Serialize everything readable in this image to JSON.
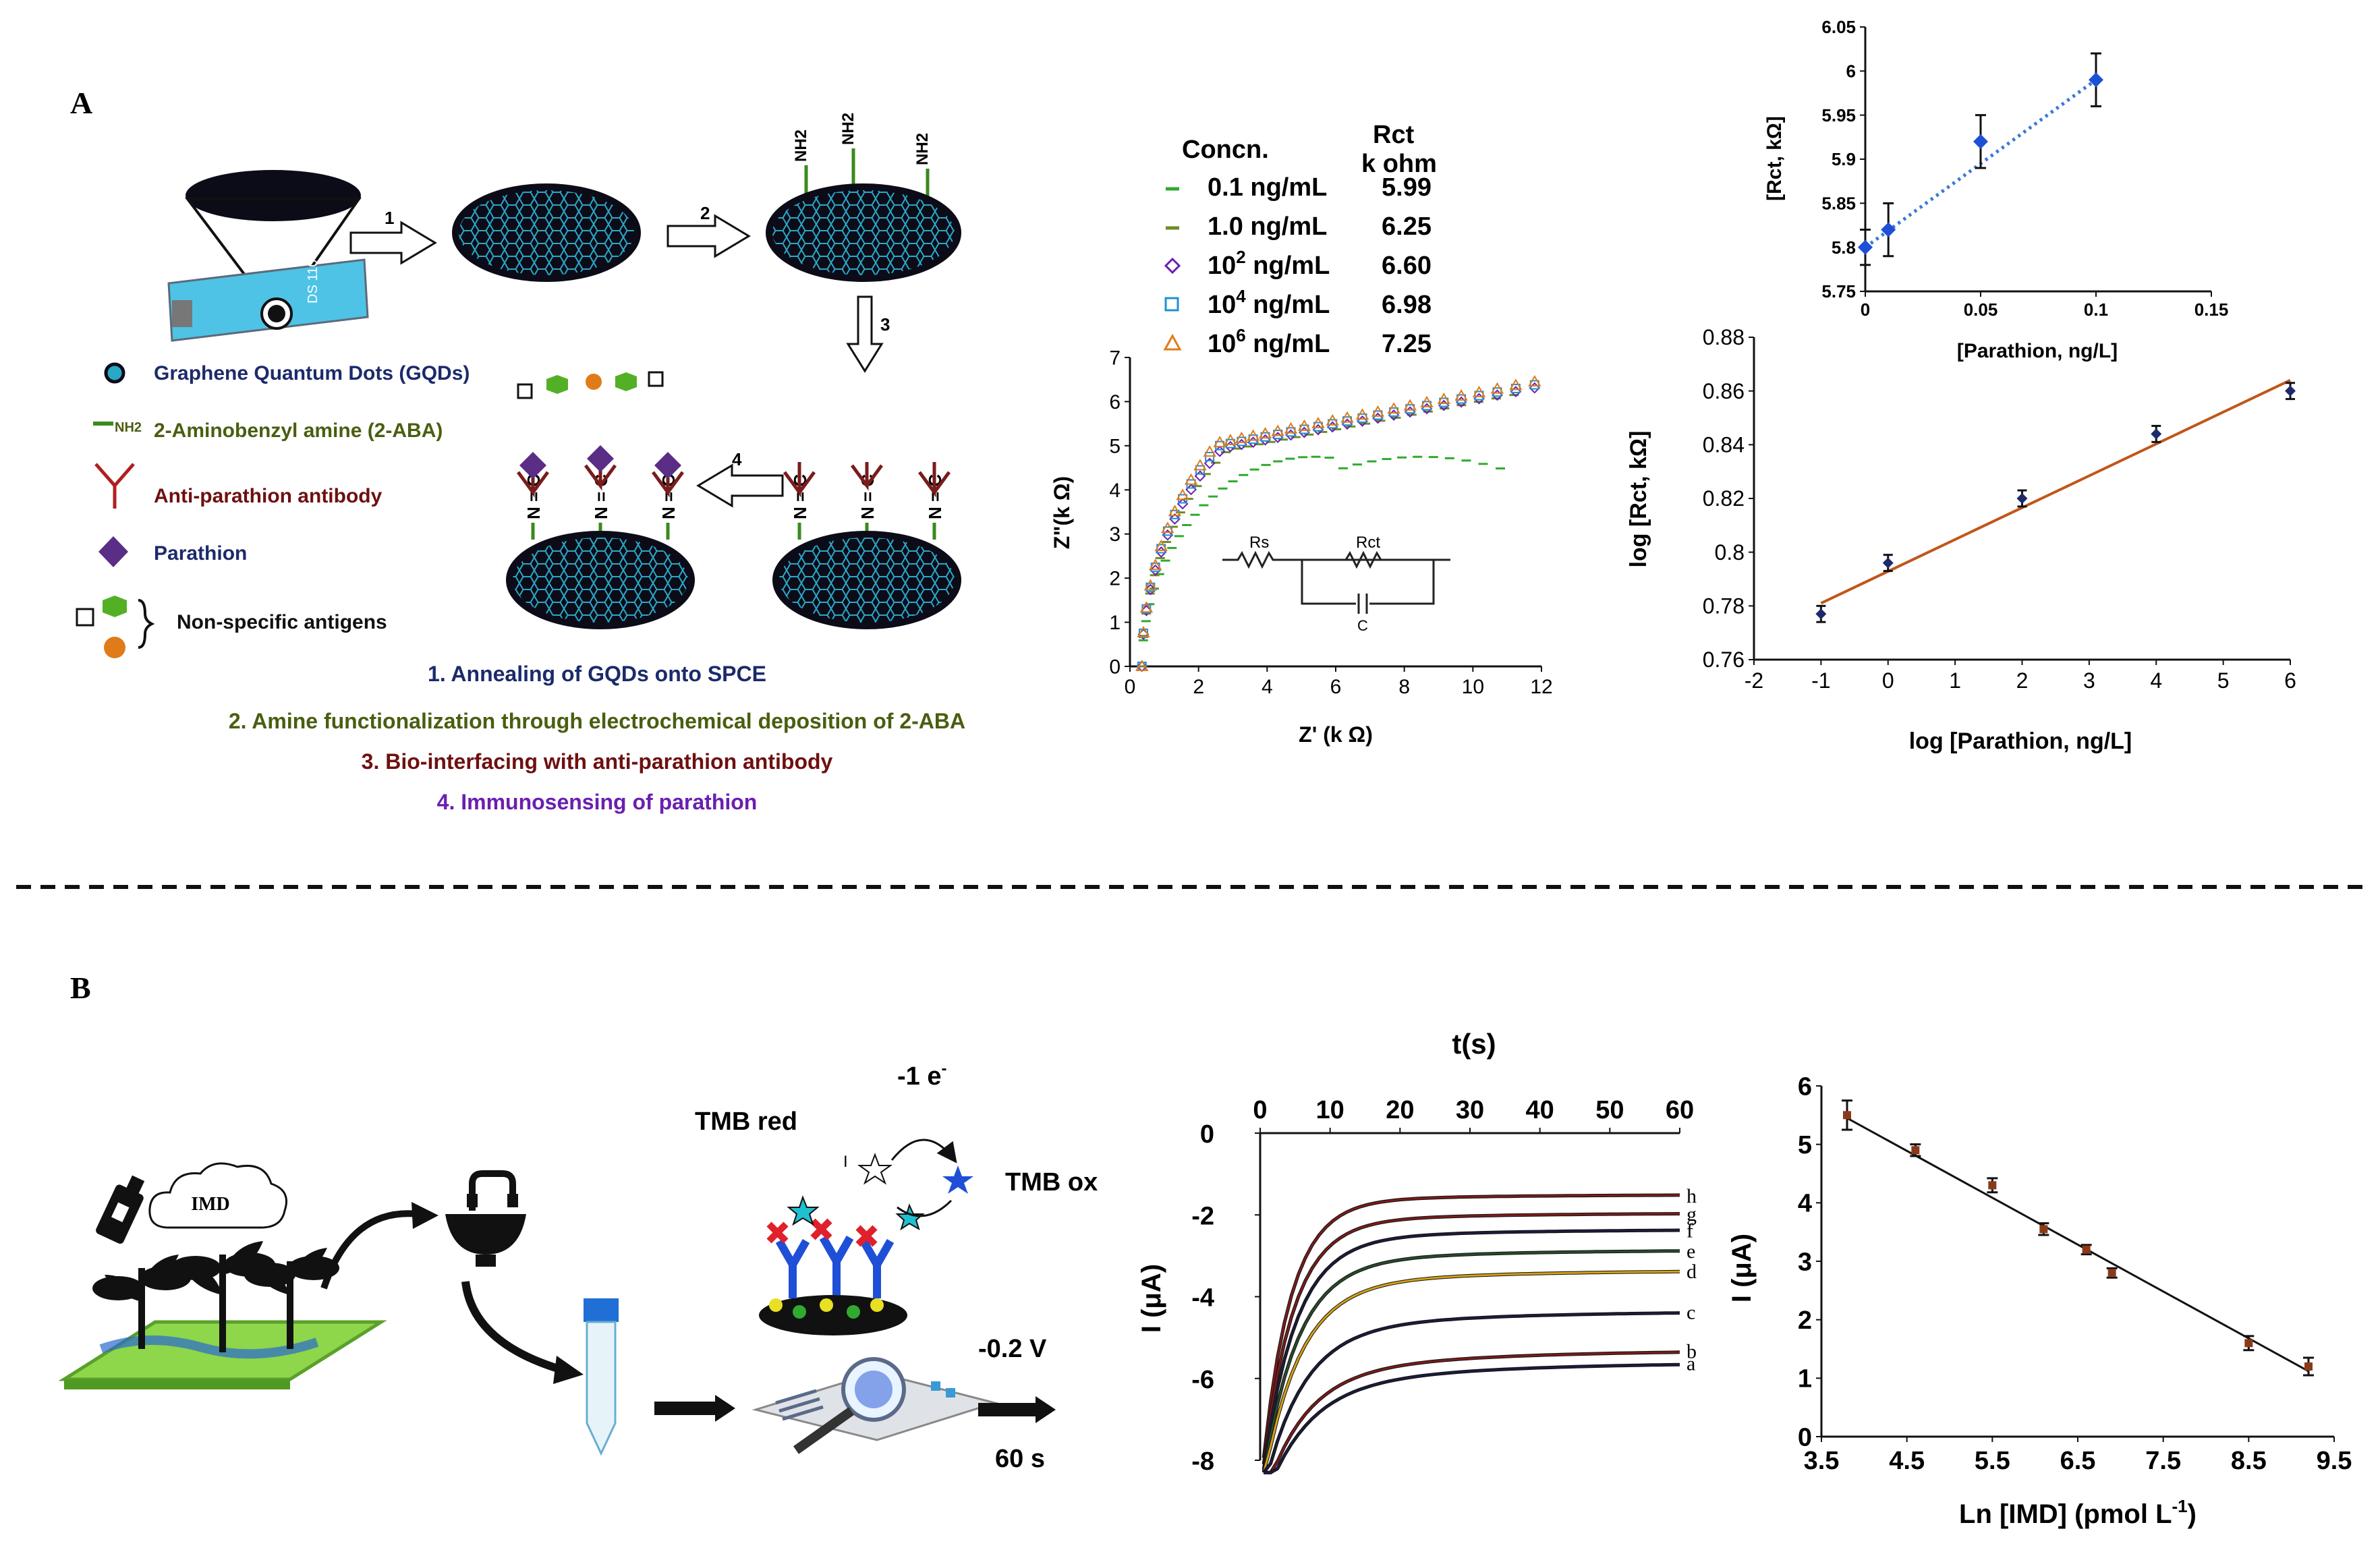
{
  "panel_labels": {
    "a": "A",
    "b": "B"
  },
  "colors": {
    "gqd": "#2aa8c8",
    "gqd_dark": "#0c0c18",
    "amine": "#3a8a1e",
    "antibody": "#7a1c1c",
    "parathion": "#5a2d86",
    "navy": "#1c2a6b",
    "green_text": "#4a5e10",
    "maroon_text": "#6e1010",
    "purple_text": "#6a1fb0",
    "blue_marker": "#1f4fd6",
    "orange": "#e07b1a",
    "green_marker": "#2faa2f"
  },
  "schematic_a": {
    "steps": [
      "1",
      "2",
      "3",
      "4"
    ],
    "nh2": [
      "NH2",
      "NH2",
      "NH2"
    ],
    "imine": "N = C",
    "legend": [
      {
        "label": "Graphene Quantum Dots (GQDs)",
        "icon": "gqd-dot-icon"
      },
      {
        "label": "2-Aminobenzyl amine (2-ABA)",
        "prefix": "NH2",
        "icon": "amine-line-icon"
      },
      {
        "label": "Anti-parathion antibody",
        "icon": "antibody-icon"
      },
      {
        "label": "Parathion",
        "icon": "diamond-icon"
      },
      {
        "label": "Non-specific antigens",
        "icon": "antigen-shapes-icon"
      }
    ],
    "process_steps": [
      "1. Annealing of GQDs onto SPCE",
      "2. Amine functionalization through electrochemical deposition of 2-ABA",
      "3. Bio-interfacing with anti-parathion antibody",
      "4. Immunosensing of parathion"
    ]
  },
  "eis_legend": {
    "header_conc": "Concn.",
    "header_rct_1": "Rct",
    "header_rct_2": "k ohm",
    "rows": [
      {
        "marker": "dash",
        "color": "#2faa2f",
        "conc": "0.1  ng/mL",
        "rct": "5.99"
      },
      {
        "marker": "dash",
        "color": "#6b8e23",
        "conc": "1.0  ng/mL",
        "rct": "6.25"
      },
      {
        "marker": "diamond",
        "color": "#6a1fb0",
        "conc": "10",
        "exp": "2",
        "unit": " ng/mL",
        "rct": "6.60"
      },
      {
        "marker": "square",
        "color": "#1f8fd6",
        "conc": "10",
        "exp": "4",
        "unit": " ng/mL",
        "rct": "6.98"
      },
      {
        "marker": "triangle",
        "color": "#e07b1a",
        "conc": "10",
        "exp": "6",
        "unit": " ng/mL",
        "rct": "7.25"
      }
    ]
  },
  "circuit": {
    "rs": "Rs",
    "rct": "Rct",
    "c": "C"
  },
  "chart_data": [
    {
      "id": "nyquist",
      "type": "scatter",
      "xlabel": "Z' (k Ω)",
      "ylabel": "Z\"(k Ω)",
      "xlim": [
        0,
        12
      ],
      "ylim": [
        0,
        7
      ],
      "xticks": [
        "0",
        "2",
        "4",
        "6",
        "8",
        "10",
        "12"
      ],
      "yticks": [
        "0",
        "1",
        "2",
        "3",
        "4",
        "5",
        "6",
        "7"
      ],
      "series": [
        {
          "name": "0.1 ng/mL",
          "style": "dash",
          "color": "#2faa2f",
          "rct": 5.99
        },
        {
          "name": "1.0 ng/mL",
          "style": "dash",
          "color": "#6b8e23",
          "rct": 6.25
        },
        {
          "name": "10^2 ng/mL",
          "style": "diamond",
          "color": "#6a1fb0",
          "rct": 6.6
        },
        {
          "name": "10^4 ng/mL",
          "style": "square",
          "color": "#1f8fd6",
          "rct": 6.98
        },
        {
          "name": "10^6 ng/mL",
          "style": "triangle",
          "color": "#e07b1a",
          "rct": 7.25
        }
      ]
    },
    {
      "id": "rct-linear",
      "type": "scatter",
      "xlabel": "[Parathion, ng/L]",
      "ylabel": "[Rct, kΩ]",
      "xlim": [
        0,
        0.15
      ],
      "ylim": [
        5.75,
        6.05
      ],
      "xticks": [
        "0",
        "0.05",
        "0.1",
        "0.15"
      ],
      "yticks": [
        "5.75",
        "5.8",
        "5.85",
        "5.9",
        "5.95",
        "6",
        "6.05"
      ],
      "points": [
        [
          0,
          5.8
        ],
        [
          0.01,
          5.82
        ],
        [
          0.05,
          5.92
        ],
        [
          0.1,
          5.99
        ]
      ],
      "errors": [
        0.02,
        0.03,
        0.03,
        0.03
      ]
    },
    {
      "id": "log-rct",
      "type": "scatter",
      "xlabel": "log [Parathion, ng/L]",
      "ylabel": "log [Rct, kΩ]",
      "xlim": [
        -2,
        6
      ],
      "ylim": [
        0.76,
        0.88
      ],
      "xticks": [
        "-2",
        "-1",
        "0",
        "1",
        "2",
        "3",
        "4",
        "5",
        "6"
      ],
      "yticks": [
        "0.76",
        "0.78",
        "0.8",
        "0.82",
        "0.84",
        "0.86",
        "0.88"
      ],
      "points": [
        [
          -1,
          0.777
        ],
        [
          0,
          0.796
        ],
        [
          2,
          0.82
        ],
        [
          4,
          0.844
        ],
        [
          6,
          0.86
        ]
      ],
      "errors": [
        0.003,
        0.003,
        0.003,
        0.003,
        0.003
      ]
    },
    {
      "id": "amperometry",
      "type": "line",
      "xlabel": "t(s)",
      "ylabel": "I (μA)",
      "xlim": [
        0,
        60
      ],
      "ylim": [
        -8,
        0
      ],
      "xticks": [
        "0",
        "10",
        "20",
        "30",
        "40",
        "50",
        "60"
      ],
      "yticks": [
        "0",
        "-2",
        "-4",
        "-6",
        "-8"
      ],
      "series": [
        {
          "name": "h",
          "final": -1.5,
          "color": "#7a1c1c"
        },
        {
          "name": "g",
          "final": -1.95,
          "color": "#7a1c1c"
        },
        {
          "name": "f",
          "final": -2.35,
          "color": "#1c1c3a"
        },
        {
          "name": "e",
          "final": -2.85,
          "color": "#2a4a2a"
        },
        {
          "name": "d",
          "final": -3.35,
          "color": "#d4a017"
        },
        {
          "name": "c",
          "final": -4.35,
          "color": "#1c1c3a"
        },
        {
          "name": "b",
          "final": -5.3,
          "color": "#7a1c1c"
        },
        {
          "name": "a",
          "final": -5.6,
          "color": "#1c1c3a"
        }
      ]
    },
    {
      "id": "imd-calibration",
      "type": "scatter",
      "xlabel": "Ln [IMD] (pmol L",
      "xlabel_sup": "-1",
      "xlabel_end": ")",
      "ylabel": "I (μA)",
      "xlim": [
        3.5,
        9.5
      ],
      "ylim": [
        0,
        6
      ],
      "xticks": [
        "3.5",
        "4.5",
        "5.5",
        "6.5",
        "7.5",
        "8.5",
        "9.5"
      ],
      "yticks": [
        "0",
        "1",
        "2",
        "3",
        "4",
        "5",
        "6"
      ],
      "points": [
        [
          3.8,
          5.5
        ],
        [
          4.6,
          4.9
        ],
        [
          5.5,
          4.3
        ],
        [
          6.1,
          3.55
        ],
        [
          6.6,
          3.2
        ],
        [
          6.9,
          2.8
        ],
        [
          8.5,
          1.6
        ],
        [
          9.2,
          1.2
        ]
      ],
      "errors": [
        0.25,
        0.1,
        0.12,
        0.1,
        0.08,
        0.08,
        0.12,
        0.15
      ]
    }
  ],
  "schematic_b": {
    "imd": "IMD",
    "tmb_red": "TMB red",
    "tmb_ox": "TMB ox",
    "electron": "-1 e",
    "electron_sup": "-",
    "voltage": "-0.2 V",
    "time": "60 s"
  }
}
